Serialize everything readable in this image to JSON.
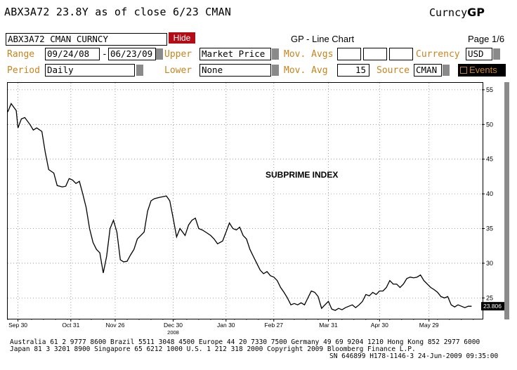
{
  "header": {
    "title": "ABX3A72  23.8Y as of close  6/23 CMAN",
    "brand_prefix": "Curncy",
    "brand_suffix": "GP"
  },
  "toolbar": {
    "security": "ABX3A72 CMAN CURNCY",
    "hide_label": "Hide",
    "chart_type": "GP - Line Chart",
    "page": "Page 1/6"
  },
  "settings": {
    "range_label": "Range",
    "range_from": "09/24/08",
    "range_dash": "-",
    "range_to": "06/23/09",
    "upper_label": "Upper",
    "upper_value": "Market Price",
    "mov_avgs_label": "Mov. Avgs",
    "currency_label": "Currency",
    "currency_value": "USD",
    "period_label": "Period",
    "period_value": "Daily",
    "lower_label": "Lower",
    "lower_value": "None",
    "mov_avg_label": "Mov. Avg",
    "mov_avg_value": "15",
    "source_label": "Source",
    "source_value": "CMAN",
    "events_label": "Events"
  },
  "chart_data": {
    "type": "line",
    "title": "SUBPRIME INDEX",
    "ylim": [
      22,
      56
    ],
    "yticks": [
      25,
      30,
      35,
      40,
      45,
      50,
      55
    ],
    "y_tick_labels": [
      "25",
      "30",
      "35",
      "40",
      "45",
      "50",
      "55"
    ],
    "x_tick_labels": [
      "Sep 30",
      "Oct 31",
      "Nov 26",
      "Dec 30",
      "Jan 30",
      "Feb 27",
      "Mar 31",
      "Apr 30",
      "May 29"
    ],
    "x_tick_dates": [
      "2008-09-30",
      "2008-10-31",
      "2008-11-26",
      "2008-12-30",
      "2009-01-30",
      "2009-02-27",
      "2009-03-31",
      "2009-04-30",
      "2009-05-29"
    ],
    "year_label": "2008",
    "last_value_label": "23.806",
    "grid": true,
    "series": [
      {
        "values": [
          [
            "2008-09-24",
            51.8
          ],
          [
            "2008-09-26",
            53.0
          ],
          [
            "2008-09-29",
            52.0
          ],
          [
            "2008-09-30",
            49.5
          ],
          [
            "2008-10-02",
            50.8
          ],
          [
            "2008-10-04",
            51.0
          ],
          [
            "2008-10-07",
            50.0
          ],
          [
            "2008-10-09",
            49.2
          ],
          [
            "2008-10-11",
            49.5
          ],
          [
            "2008-10-14",
            49.0
          ],
          [
            "2008-10-16",
            46.0
          ],
          [
            "2008-10-18",
            43.5
          ],
          [
            "2008-10-21",
            43.0
          ],
          [
            "2008-10-23",
            41.2
          ],
          [
            "2008-10-26",
            41.0
          ],
          [
            "2008-10-28",
            41.1
          ],
          [
            "2008-10-30",
            42.2
          ],
          [
            "2008-11-01",
            42.0
          ],
          [
            "2008-11-03",
            41.5
          ],
          [
            "2008-11-05",
            41.8
          ],
          [
            "2008-11-07",
            40.0
          ],
          [
            "2008-11-09",
            38.0
          ],
          [
            "2008-11-11",
            35.0
          ],
          [
            "2008-11-13",
            33.0
          ],
          [
            "2008-11-15",
            32.0
          ],
          [
            "2008-11-17",
            31.5
          ],
          [
            "2008-11-19",
            28.6
          ],
          [
            "2008-11-21",
            31.0
          ],
          [
            "2008-11-23",
            35.0
          ],
          [
            "2008-11-25",
            36.2
          ],
          [
            "2008-11-27",
            34.5
          ],
          [
            "2008-11-29",
            30.5
          ],
          [
            "2008-12-01",
            30.2
          ],
          [
            "2008-12-03",
            30.3
          ],
          [
            "2008-12-05",
            31.2
          ],
          [
            "2008-12-07",
            32.0
          ],
          [
            "2008-12-09",
            33.5
          ],
          [
            "2008-12-11",
            34.0
          ],
          [
            "2008-12-13",
            34.5
          ],
          [
            "2008-12-15",
            37.5
          ],
          [
            "2008-12-17",
            39.0
          ],
          [
            "2008-12-19",
            39.3
          ],
          [
            "2008-12-22",
            39.5
          ],
          [
            "2008-12-24",
            39.6
          ],
          [
            "2008-12-26",
            39.7
          ],
          [
            "2008-12-28",
            39.0
          ],
          [
            "2008-12-30",
            36.5
          ],
          [
            "2009-01-01",
            33.8
          ],
          [
            "2009-01-03",
            35.0
          ],
          [
            "2009-01-06",
            34.0
          ],
          [
            "2009-01-08",
            35.5
          ],
          [
            "2009-01-10",
            36.2
          ],
          [
            "2009-01-12",
            36.5
          ],
          [
            "2009-01-14",
            35.0
          ],
          [
            "2009-01-16",
            34.8
          ],
          [
            "2009-01-18",
            34.5
          ],
          [
            "2009-01-21",
            34.0
          ],
          [
            "2009-01-23",
            33.5
          ],
          [
            "2009-01-25",
            32.8
          ],
          [
            "2009-01-28",
            33.2
          ],
          [
            "2009-01-30",
            34.5
          ],
          [
            "2009-02-01",
            35.8
          ],
          [
            "2009-02-03",
            35.0
          ],
          [
            "2009-02-05",
            34.8
          ],
          [
            "2009-02-07",
            35.2
          ],
          [
            "2009-02-09",
            34.0
          ],
          [
            "2009-02-11",
            33.5
          ],
          [
            "2009-02-13",
            32.0
          ],
          [
            "2009-02-15",
            31.0
          ],
          [
            "2009-02-17",
            30.0
          ],
          [
            "2009-02-19",
            29.0
          ],
          [
            "2009-02-21",
            28.5
          ],
          [
            "2009-02-23",
            28.8
          ],
          [
            "2009-02-25",
            28.2
          ],
          [
            "2009-02-27",
            28.0
          ],
          [
            "2009-03-01",
            27.5
          ],
          [
            "2009-03-03",
            26.5
          ],
          [
            "2009-03-05",
            25.8
          ],
          [
            "2009-03-07",
            25.0
          ],
          [
            "2009-03-09",
            24.0
          ],
          [
            "2009-03-11",
            24.2
          ],
          [
            "2009-03-13",
            24.0
          ],
          [
            "2009-03-15",
            24.3
          ],
          [
            "2009-03-17",
            24.0
          ],
          [
            "2009-03-19",
            25.0
          ],
          [
            "2009-03-21",
            26.0
          ],
          [
            "2009-03-23",
            25.8
          ],
          [
            "2009-03-25",
            25.2
          ],
          [
            "2009-03-27",
            23.5
          ],
          [
            "2009-03-29",
            24.0
          ],
          [
            "2009-03-31",
            24.5
          ],
          [
            "2009-04-02",
            23.4
          ],
          [
            "2009-04-04",
            23.2
          ],
          [
            "2009-04-06",
            23.5
          ],
          [
            "2009-04-08",
            23.3
          ],
          [
            "2009-04-10",
            23.6
          ],
          [
            "2009-04-12",
            23.8
          ],
          [
            "2009-04-14",
            24.0
          ],
          [
            "2009-04-16",
            23.6
          ],
          [
            "2009-04-18",
            24.0
          ],
          [
            "2009-04-20",
            24.5
          ],
          [
            "2009-04-22",
            25.5
          ],
          [
            "2009-04-24",
            25.3
          ],
          [
            "2009-04-26",
            25.8
          ],
          [
            "2009-04-28",
            25.5
          ],
          [
            "2009-04-30",
            26.0
          ],
          [
            "2009-05-02",
            26.0
          ],
          [
            "2009-05-04",
            26.5
          ],
          [
            "2009-05-06",
            27.5
          ],
          [
            "2009-05-08",
            27.0
          ],
          [
            "2009-05-10",
            27.0
          ],
          [
            "2009-05-12",
            26.5
          ],
          [
            "2009-05-14",
            27.0
          ],
          [
            "2009-05-16",
            27.8
          ],
          [
            "2009-05-18",
            28.0
          ],
          [
            "2009-05-20",
            27.9
          ],
          [
            "2009-05-22",
            28.0
          ],
          [
            "2009-05-24",
            28.3
          ],
          [
            "2009-05-26",
            27.5
          ],
          [
            "2009-05-28",
            27.0
          ],
          [
            "2009-05-30",
            26.5
          ],
          [
            "2009-06-01",
            26.2
          ],
          [
            "2009-06-03",
            25.8
          ],
          [
            "2009-06-05",
            25.2
          ],
          [
            "2009-06-07",
            25.0
          ],
          [
            "2009-06-09",
            25.2
          ],
          [
            "2009-06-11",
            24.0
          ],
          [
            "2009-06-13",
            23.7
          ],
          [
            "2009-06-15",
            24.0
          ],
          [
            "2009-06-17",
            23.8
          ],
          [
            "2009-06-19",
            23.6
          ],
          [
            "2009-06-21",
            23.8
          ],
          [
            "2009-06-23",
            23.806
          ]
        ]
      }
    ]
  },
  "footer": {
    "line1": "Australia 61 2 9777 8600 Brazil 5511 3048 4500 Europe 44 20 7330 7500 Germany 49 69 9204 1210 Hong Kong 852 2977 6000",
    "line2": "Japan 81 3 3201 8900          Singapore 65 6212 1000          U.S. 1 212 318 2000          Copyright 2009 Bloomberg Finance L.P.",
    "line3": "SN 646899 H178-1146-3 24-Jun-2009 09:35:00"
  },
  "colors": {
    "label": "#c8841c",
    "hide_button": "#b30c17",
    "line": "#000000",
    "grid": "#888888",
    "scrollbar": "#8a8a8a"
  }
}
